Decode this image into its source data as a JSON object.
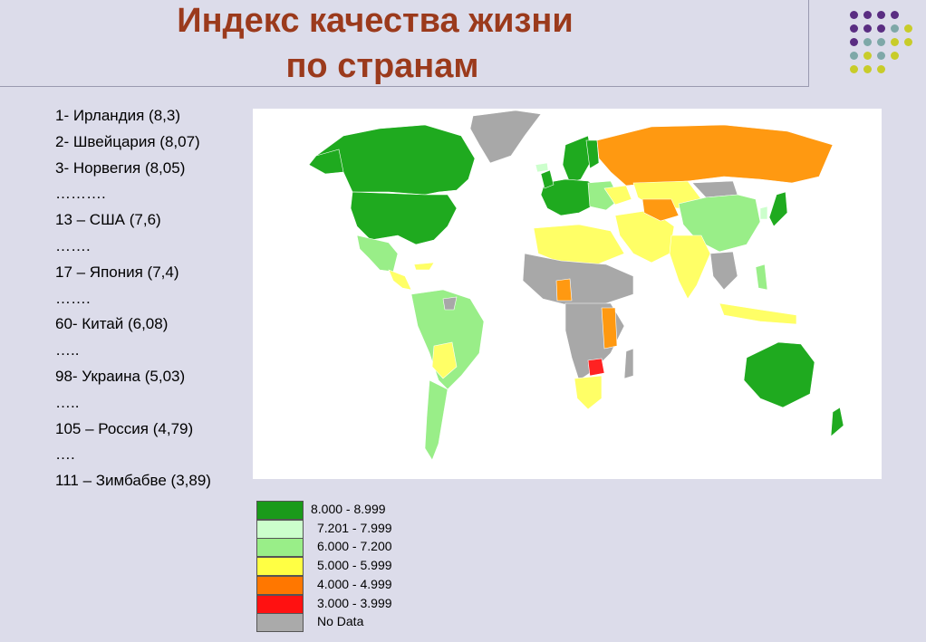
{
  "title": {
    "line1": "Индекс качества жизни",
    "line2": "по странам"
  },
  "ranking": [
    "1- Ирландия (8,3)",
    "2- Швейцария (8,07)",
    "3- Норвегия (8,05)",
    "……….",
    "13 – США (7,6)",
    "…….",
    "17 – Япония (7,4)",
    "…….",
    "60- Китай (6,08)",
    "…..",
    "98- Украина (5,03)",
    "…..",
    "105 – Россия (4,79)",
    "….",
    "111 – Зимбабве (3,89)"
  ],
  "legend": [
    {
      "label": "8.000 - 8.999",
      "color": "#1a9a1a"
    },
    {
      "label": "7.201 - 7.999",
      "color": "#ccffcc"
    },
    {
      "label": "6.000 - 7.200",
      "color": "#99ee88"
    },
    {
      "label": "5.000 - 5.999",
      "color": "#ffff44"
    },
    {
      "label": "4.000 - 4.999",
      "color": "#ff7700"
    },
    {
      "label": "3.000 - 3.999",
      "color": "#ff1111"
    },
    {
      "label": "No Data",
      "color": "#aaaaaa"
    }
  ],
  "map_colors": {
    "band_8": "#1faa1f",
    "band_7": "#ccffcc",
    "band_6": "#99ee88",
    "band_5": "#ffff66",
    "band_4": "#ff9911",
    "band_3": "#ff2222",
    "no_data": "#a8a8a8",
    "ocean": "#ffffff"
  },
  "decor_dot_colors": [
    "#5a2d82",
    "#7ea8a8",
    "#c8cc2a"
  ]
}
